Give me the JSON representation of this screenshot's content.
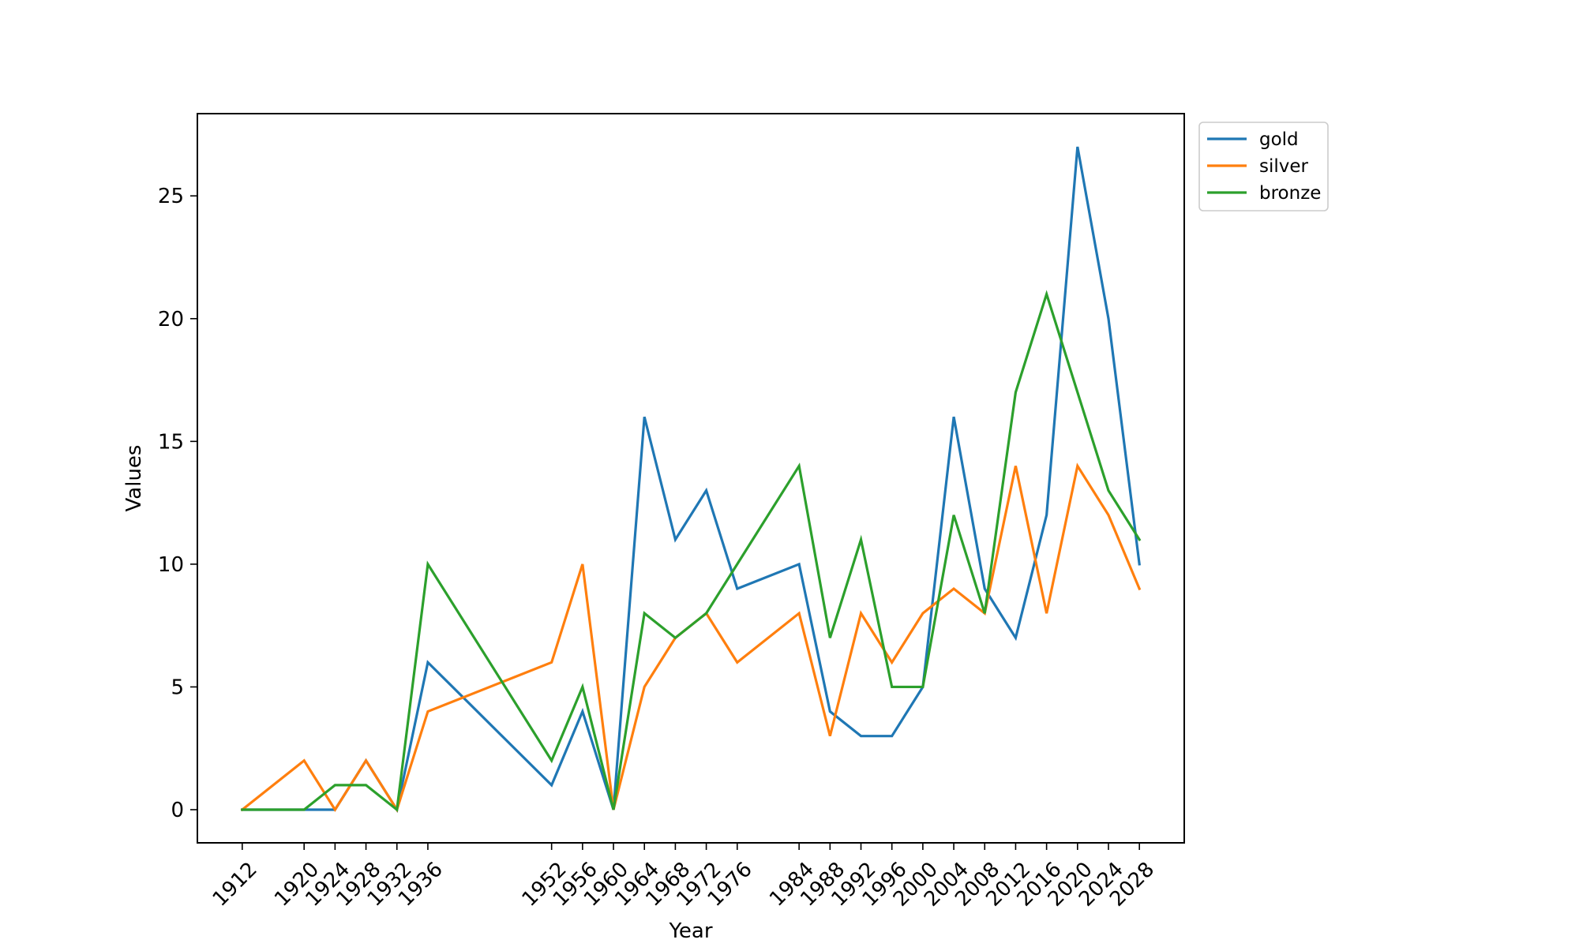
{
  "chart_data": {
    "type": "line",
    "xlabel": "Year",
    "ylabel": "Values",
    "x": [
      1912,
      1920,
      1924,
      1928,
      1932,
      1936,
      1952,
      1956,
      1960,
      1964,
      1968,
      1972,
      1976,
      1984,
      1988,
      1992,
      1996,
      2000,
      2004,
      2008,
      2012,
      2016,
      2020,
      2024,
      2028
    ],
    "xticks": [
      "1912",
      "1920",
      "1924",
      "1928",
      "1932",
      "1936",
      "1952",
      "1956",
      "1960",
      "1964",
      "1968",
      "1972",
      "1976",
      "1984",
      "1988",
      "1992",
      "1996",
      "2000",
      "2004",
      "2008",
      "2012",
      "2016",
      "2020",
      "2024",
      "2028"
    ],
    "yticks": [
      "0",
      "5",
      "10",
      "15",
      "20",
      "25"
    ],
    "xlim": [
      1906.2,
      2033.8
    ],
    "ylim": [
      -1.35,
      28.35
    ],
    "grid": false,
    "legend_position": "outside-top-right",
    "series": [
      {
        "name": "gold",
        "color": "#1f77b4",
        "values": [
          0,
          0,
          0,
          2,
          0,
          6,
          1,
          4,
          0,
          16,
          11,
          13,
          9,
          10,
          4,
          3,
          3,
          5,
          16,
          9,
          7,
          12,
          27,
          20,
          10
        ]
      },
      {
        "name": "silver",
        "color": "#ff7f0e",
        "values": [
          0,
          2,
          0,
          2,
          0,
          4,
          6,
          10,
          0,
          5,
          7,
          8,
          6,
          8,
          3,
          8,
          6,
          8,
          9,
          8,
          14,
          8,
          14,
          12,
          9
        ]
      },
      {
        "name": "bronze",
        "color": "#2ca02c",
        "values": [
          0,
          0,
          1,
          1,
          0,
          10,
          2,
          5,
          0,
          8,
          7,
          8,
          10,
          14,
          7,
          11,
          5,
          5,
          12,
          8,
          17,
          21,
          17,
          13,
          11
        ]
      }
    ]
  }
}
